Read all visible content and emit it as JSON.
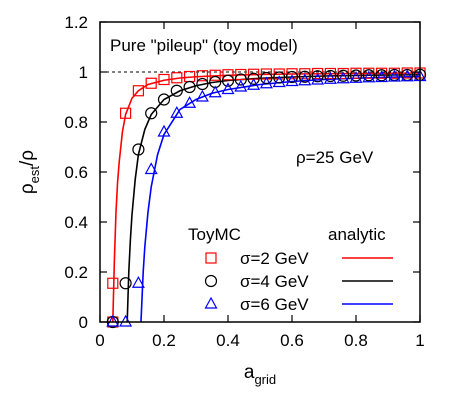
{
  "chart_data": {
    "type": "line",
    "title": "Pure \"pileup\" (toy model)",
    "annotation": "ρ=25 GeV",
    "xlabel": {
      "main": "a",
      "sub": "grid"
    },
    "ylabel": {
      "main": "ρ",
      "sub": "est",
      "tail": "/ρ"
    },
    "xlim": [
      0,
      1
    ],
    "ylim": [
      0,
      1.2
    ],
    "xticks": [
      "0",
      "0.2",
      "0.4",
      "0.6",
      "0.8",
      "1"
    ],
    "yticks": [
      "0",
      "0.2",
      "0.4",
      "0.6",
      "0.8",
      "1",
      "1.2"
    ],
    "reference_line_y": 1,
    "grid": false,
    "legend": {
      "position": "bottom-right",
      "col_markers": "ToyMC",
      "col_lines": "analytic"
    },
    "series": [
      {
        "name": "σ=2 GeV",
        "color": "#ff0000",
        "marker": "square",
        "points": [
          [
            0.04,
            0.0
          ],
          [
            0.04,
            0.155
          ],
          [
            0.08,
            0.835
          ],
          [
            0.12,
            0.925
          ],
          [
            0.16,
            0.955
          ],
          [
            0.2,
            0.97
          ],
          [
            0.24,
            0.977
          ],
          [
            0.28,
            0.982
          ],
          [
            0.32,
            0.985
          ],
          [
            0.36,
            0.987
          ],
          [
            0.4,
            0.989
          ],
          [
            0.44,
            0.99
          ],
          [
            0.48,
            0.991
          ],
          [
            0.52,
            0.992
          ],
          [
            0.56,
            0.992
          ],
          [
            0.6,
            0.993
          ],
          [
            0.64,
            0.993
          ],
          [
            0.68,
            0.994
          ],
          [
            0.72,
            0.994
          ],
          [
            0.76,
            0.994
          ],
          [
            0.8,
            0.995
          ],
          [
            0.84,
            0.995
          ],
          [
            0.88,
            0.995
          ],
          [
            0.92,
            0.995
          ],
          [
            0.96,
            0.996
          ],
          [
            1.0,
            0.996
          ]
        ],
        "curve": [
          [
            0.04,
            0.0
          ],
          [
            0.045,
            0.25
          ],
          [
            0.05,
            0.44
          ],
          [
            0.055,
            0.56
          ],
          [
            0.06,
            0.64
          ],
          [
            0.07,
            0.76
          ],
          [
            0.08,
            0.83
          ],
          [
            0.1,
            0.895
          ],
          [
            0.12,
            0.925
          ],
          [
            0.15,
            0.95
          ],
          [
            0.2,
            0.967
          ],
          [
            0.25,
            0.976
          ],
          [
            0.3,
            0.981
          ],
          [
            0.4,
            0.987
          ],
          [
            0.5,
            0.99
          ],
          [
            0.6,
            0.992
          ],
          [
            0.7,
            0.993
          ],
          [
            0.8,
            0.994
          ],
          [
            0.9,
            0.995
          ],
          [
            1.0,
            0.996
          ]
        ]
      },
      {
        "name": "σ=4 GeV",
        "color": "#000000",
        "marker": "circle",
        "points": [
          [
            0.04,
            0.0
          ],
          [
            0.08,
            0.155
          ],
          [
            0.12,
            0.69
          ],
          [
            0.16,
            0.835
          ],
          [
            0.2,
            0.89
          ],
          [
            0.24,
            0.925
          ],
          [
            0.28,
            0.94
          ],
          [
            0.32,
            0.952
          ],
          [
            0.36,
            0.96
          ],
          [
            0.4,
            0.965
          ],
          [
            0.44,
            0.97
          ],
          [
            0.48,
            0.973
          ],
          [
            0.52,
            0.976
          ],
          [
            0.56,
            0.978
          ],
          [
            0.6,
            0.98
          ],
          [
            0.64,
            0.981
          ],
          [
            0.68,
            0.983
          ],
          [
            0.72,
            0.984
          ],
          [
            0.76,
            0.985
          ],
          [
            0.8,
            0.986
          ],
          [
            0.84,
            0.987
          ],
          [
            0.88,
            0.987
          ],
          [
            0.92,
            0.988
          ],
          [
            0.96,
            0.988
          ],
          [
            1.0,
            0.989
          ]
        ],
        "curve": [
          [
            0.085,
            0.0
          ],
          [
            0.09,
            0.2
          ],
          [
            0.095,
            0.33
          ],
          [
            0.1,
            0.43
          ],
          [
            0.11,
            0.57
          ],
          [
            0.12,
            0.67
          ],
          [
            0.14,
            0.77
          ],
          [
            0.16,
            0.83
          ],
          [
            0.2,
            0.89
          ],
          [
            0.25,
            0.925
          ],
          [
            0.3,
            0.945
          ],
          [
            0.35,
            0.958
          ],
          [
            0.4,
            0.966
          ],
          [
            0.5,
            0.975
          ],
          [
            0.6,
            0.98
          ],
          [
            0.7,
            0.984
          ],
          [
            0.8,
            0.986
          ],
          [
            0.9,
            0.988
          ],
          [
            1.0,
            0.989
          ]
        ]
      },
      {
        "name": "σ=6 GeV",
        "color": "#0000ff",
        "marker": "triangle",
        "points": [
          [
            0.04,
            0.0
          ],
          [
            0.08,
            0.0
          ],
          [
            0.12,
            0.155
          ],
          [
            0.16,
            0.61
          ],
          [
            0.2,
            0.76
          ],
          [
            0.24,
            0.835
          ],
          [
            0.28,
            0.875
          ],
          [
            0.32,
            0.9
          ],
          [
            0.36,
            0.917
          ],
          [
            0.4,
            0.93
          ],
          [
            0.44,
            0.94
          ],
          [
            0.48,
            0.947
          ],
          [
            0.52,
            0.953
          ],
          [
            0.56,
            0.958
          ],
          [
            0.6,
            0.962
          ],
          [
            0.64,
            0.965
          ],
          [
            0.68,
            0.968
          ],
          [
            0.72,
            0.971
          ],
          [
            0.76,
            0.973
          ],
          [
            0.8,
            0.975
          ],
          [
            0.84,
            0.977
          ],
          [
            0.88,
            0.978
          ],
          [
            0.92,
            0.98
          ],
          [
            0.96,
            0.981
          ],
          [
            1.0,
            0.982
          ]
        ],
        "curve": [
          [
            0.128,
            0.0
          ],
          [
            0.135,
            0.2
          ],
          [
            0.14,
            0.3
          ],
          [
            0.15,
            0.44
          ],
          [
            0.16,
            0.54
          ],
          [
            0.18,
            0.67
          ],
          [
            0.2,
            0.75
          ],
          [
            0.25,
            0.85
          ],
          [
            0.3,
            0.89
          ],
          [
            0.35,
            0.915
          ],
          [
            0.4,
            0.93
          ],
          [
            0.5,
            0.95
          ],
          [
            0.6,
            0.962
          ],
          [
            0.7,
            0.97
          ],
          [
            0.8,
            0.975
          ],
          [
            0.9,
            0.979
          ],
          [
            1.0,
            0.982
          ]
        ]
      }
    ]
  }
}
